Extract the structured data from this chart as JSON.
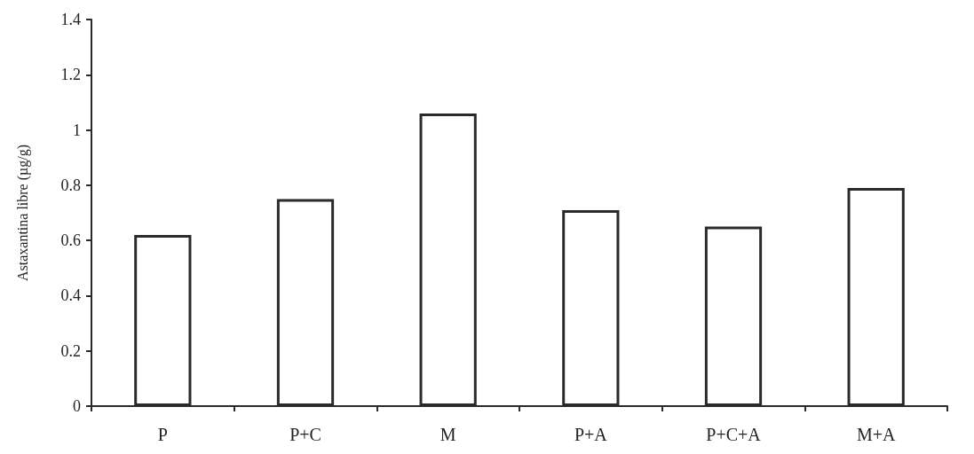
{
  "chart_data": {
    "type": "bar",
    "ylabel": "Astaxantina libre (µg/g)",
    "categories": [
      "P",
      "P+C",
      "M",
      "P+A",
      "P+C+A",
      "M+A"
    ],
    "values": [
      0.62,
      0.75,
      1.06,
      0.71,
      0.65,
      0.79
    ],
    "color": "#ffffff",
    "ylim": [
      0,
      1.4
    ],
    "yticks": [
      0,
      0.2,
      0.4,
      0.6,
      0.8,
      1,
      1.2,
      1.4
    ],
    "grid": false
  }
}
